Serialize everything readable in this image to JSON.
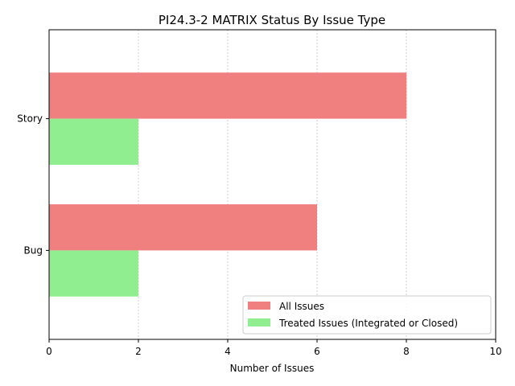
{
  "chart_data": {
    "type": "bar",
    "orientation": "horizontal",
    "title": "PI24.3-2 MATRIX Status By Issue Type",
    "xlabel": "Number of Issues",
    "ylabel": "",
    "categories": [
      "Bug",
      "Story"
    ],
    "series": [
      {
        "name": "All Issues",
        "values": [
          6,
          8
        ],
        "color": "#f08080"
      },
      {
        "name": "Treated Issues (Integrated or Closed)",
        "values": [
          2,
          2
        ],
        "color": "#90ee90"
      }
    ],
    "xlim": [
      0,
      10
    ],
    "xticks": [
      0,
      2,
      4,
      6,
      8,
      10
    ],
    "xtick_labels": [
      "0",
      "2",
      "4",
      "6",
      "8",
      "10"
    ],
    "grid": "vertical dashed",
    "legend_position": "lower-right"
  }
}
